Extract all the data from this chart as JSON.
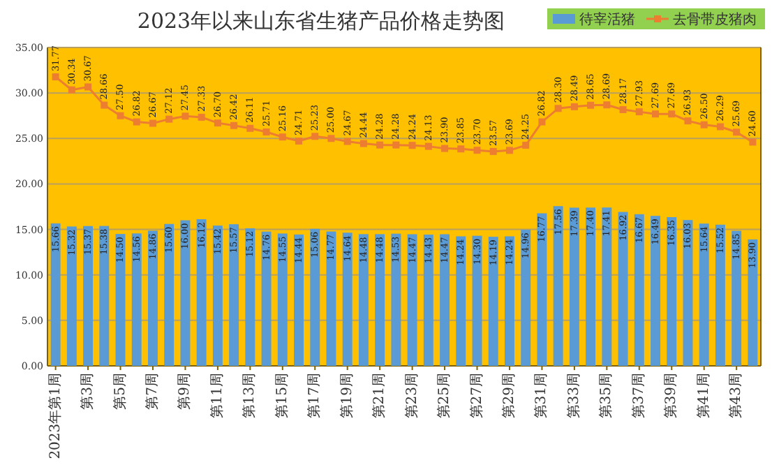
{
  "chart_data": {
    "type": "bar",
    "title": "2023年以来山东省生猪产品价格走势图",
    "categories": [
      "2023年第1周",
      null,
      "第3周",
      null,
      "第5周",
      null,
      "第7周",
      null,
      "第9周",
      null,
      "第11周",
      null,
      "第13周",
      null,
      "第15周",
      null,
      "第17周",
      null,
      "第19周",
      null,
      "第21周",
      null,
      "第23周",
      null,
      "第25周",
      null,
      "第27周",
      null,
      "第29周",
      null,
      "第31周",
      null,
      "第33周",
      null,
      "第35周",
      null,
      "第37周",
      null,
      "第39周",
      null,
      "第41周",
      null,
      "第43周",
      null
    ],
    "series": [
      {
        "name": "待宰活猪",
        "color": "#5b9bd5",
        "values": [
          15.66,
          15.32,
          15.37,
          15.38,
          14.5,
          14.56,
          14.86,
          15.6,
          16.0,
          16.12,
          15.42,
          15.57,
          15.12,
          14.76,
          14.55,
          14.44,
          15.06,
          14.77,
          14.64,
          14.48,
          14.48,
          14.53,
          14.47,
          14.43,
          14.47,
          14.24,
          14.3,
          14.19,
          14.24,
          14.96,
          16.77,
          17.56,
          17.39,
          17.4,
          17.41,
          16.92,
          16.67,
          16.49,
          16.35,
          16.03,
          15.64,
          15.52,
          14.85,
          13.9
        ],
        "value_labels": [
          "15.66",
          "15.32",
          "15.37",
          "15.38",
          "14.50",
          "14.56",
          "14.86",
          "15.60",
          "16.00",
          "16.12",
          "15.42",
          "15.57",
          "15.12",
          "14.76",
          "14.55",
          "14.44",
          "15.06",
          "14.77",
          "14.64",
          "14.48",
          "14.48",
          "14.53",
          "14.47",
          "14.43",
          "14.47",
          "14.24",
          "14.30",
          "14.19",
          "14.24",
          "14.96",
          "16.77",
          "17.56",
          "17.39",
          "17.40",
          "17.41",
          "16.92",
          "16.67",
          "16.49",
          "16.35",
          "16.03",
          "15.64",
          "15.52",
          "14.85",
          "13.90"
        ]
      },
      {
        "name": "去骨带皮猪肉",
        "type": "line",
        "color": "#ed7d31",
        "marker": "square",
        "values": [
          31.77,
          30.34,
          30.67,
          28.66,
          27.5,
          26.82,
          26.67,
          27.12,
          27.45,
          27.33,
          26.7,
          26.42,
          26.11,
          25.71,
          25.16,
          24.71,
          25.23,
          25.0,
          24.67,
          24.44,
          24.28,
          24.28,
          24.24,
          24.13,
          23.9,
          23.85,
          23.7,
          23.57,
          23.69,
          24.25,
          26.82,
          28.3,
          28.49,
          28.65,
          28.69,
          28.17,
          27.93,
          27.69,
          27.69,
          26.93,
          26.5,
          26.29,
          25.69,
          24.6
        ],
        "value_labels": [
          "31.77",
          "30.34",
          "30.67",
          "28.66",
          "27.50",
          "26.82",
          "26.67",
          "27.12",
          "27.45",
          "27.33",
          "26.70",
          "26.42",
          "26.11",
          "25.71",
          "25.16",
          "24.71",
          "25.23",
          "25.00",
          "24.67",
          "24.44",
          "24.28",
          "24.28",
          "24.24",
          "24.13",
          "23.90",
          "23.85",
          "23.70",
          "23.57",
          "23.69",
          "24.25",
          "26.82",
          "28.30",
          "28.49",
          "28.65",
          "28.69",
          "28.17",
          "27.93",
          "27.69",
          "27.69",
          "26.93",
          "26.50",
          "26.29",
          "25.69",
          "24.60"
        ]
      }
    ],
    "ylim": [
      0,
      35
    ],
    "yticks": [
      {
        "value": 0,
        "label": "0.00"
      },
      {
        "value": 5,
        "label": "5.00"
      },
      {
        "value": 10,
        "label": "10.00"
      },
      {
        "value": 15,
        "label": "15.00"
      },
      {
        "value": 20,
        "label": "20.00"
      },
      {
        "value": 25,
        "label": "25.00"
      },
      {
        "value": 30,
        "label": "30.00"
      },
      {
        "value": 35,
        "label": "35.00"
      }
    ],
    "grid": "y",
    "legend": "top right",
    "line_style": "solid"
  }
}
